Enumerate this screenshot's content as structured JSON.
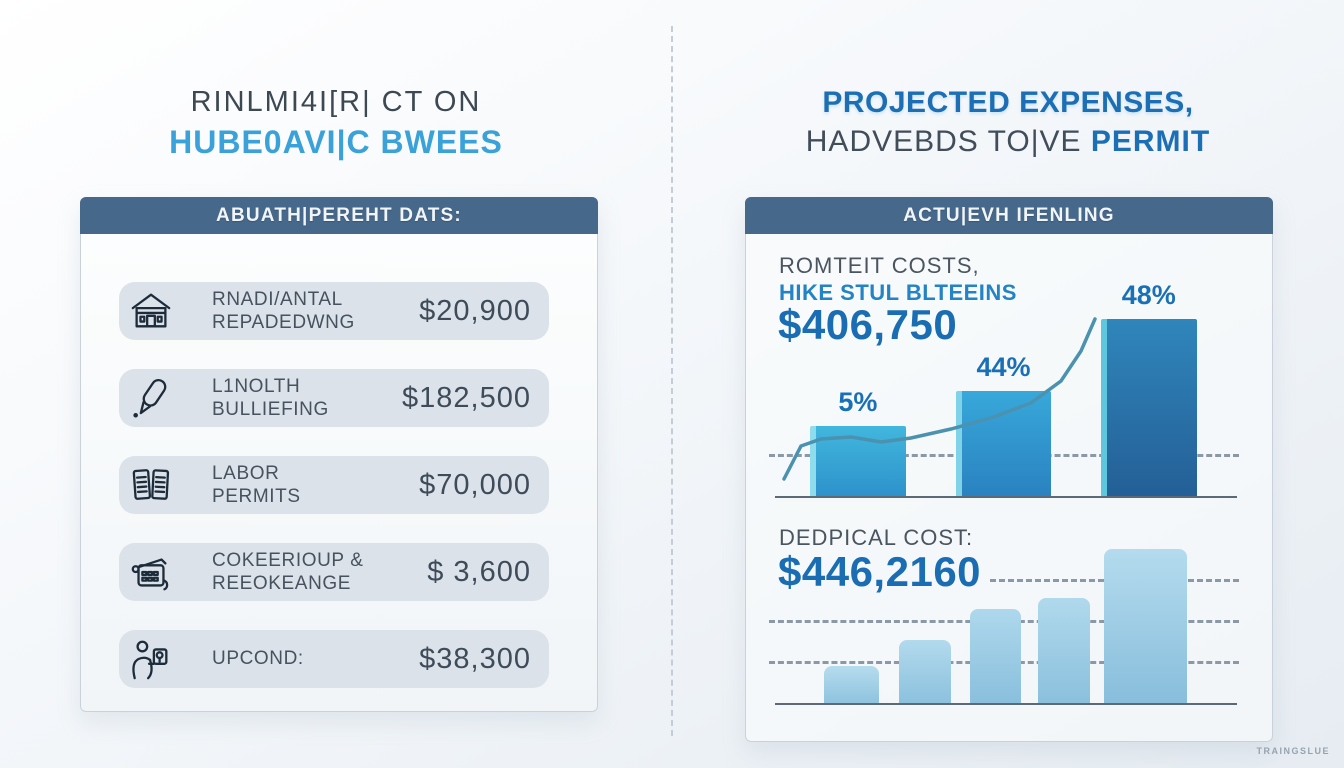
{
  "watermark": "TRAINGSLUE",
  "colors": {
    "header_bar": "#46688b",
    "accent_blue": "#1a6db2",
    "light_blue": "#3aa2d9",
    "dark_text": "#3c4852",
    "gray_text": "#4a5560",
    "row_bg": "#dce2e9"
  },
  "left_panel": {
    "title_line1": "RINLMI4I[R| CT ON",
    "title_line2": "HUBE0AVI|C BWEES",
    "header": "ABUATH|PEREHT DATS:",
    "rows": [
      {
        "icon": "house-icon",
        "label_line1": "RNADI/ANTAL",
        "label_line2": "REPADEDWNG",
        "amount": "$20,900"
      },
      {
        "icon": "pencil-icon",
        "label_line1": "L1NOLTH",
        "label_line2": "BULLIEFING",
        "amount": "$182,500"
      },
      {
        "icon": "documents-icon",
        "label_line1": "LABOR",
        "label_line2": "PERMITS",
        "amount": "$70,000"
      },
      {
        "icon": "calculator-icon",
        "label_line1": "COKEERIOUP &",
        "label_line2": "REEOKEANGE",
        "amount": "$ 3,600"
      },
      {
        "icon": "person-icon",
        "label_line1": "UPCOND:",
        "label_line2": "",
        "amount": "$38,300"
      }
    ]
  },
  "right_panel": {
    "title_line1": "PROJECTED EXPENSES,",
    "title_line2_plain": "HADVEBDS TO|VE ",
    "title_line2_bold": "PERMIT",
    "header": "ACTU|EVH IFENLING",
    "upper_caption_line1": "ROMTEIT COSTS,",
    "upper_caption_line2": "HIKE STUL BLTEEINS",
    "upper_amount": "$406,750",
    "lower_caption": "DEDPICAL COST:",
    "lower_amount": "$446,2160"
  },
  "chart_data": [
    {
      "type": "bar",
      "id": "upper",
      "title": "ACTU|EVH IFENLING — growth bars with trend line",
      "categories": [
        "stage-1",
        "stage-2",
        "stage-3"
      ],
      "values": [
        5,
        44,
        48
      ],
      "data_labels": [
        "5%",
        "44%",
        "48%"
      ],
      "ylim": [
        0,
        50
      ],
      "legend": "none",
      "grid": "one dashed horizontal line",
      "overlay": "rising trend line, steep at right",
      "bar_radius": "2px 2px 0 0",
      "bars": [
        {
          "left_pct": 8.7,
          "width_pct": 20.4,
          "height_pct": 32.3,
          "label": "5%",
          "color_top": "#41b7de",
          "color_bottom": "#2e92cb",
          "edge": "#8fdcec"
        },
        {
          "left_pct": 39.8,
          "width_pct": 20.2,
          "height_pct": 48.4,
          "label": "44%",
          "color_top": "#38a8da",
          "color_bottom": "#2a82c0",
          "edge": "#7fd2e8"
        },
        {
          "left_pct": 70.6,
          "width_pct": 20.4,
          "height_pct": 81.6,
          "label": "48%",
          "color_top": "#2f86bb",
          "color_bottom": "#245f97",
          "edge": "#5ec6dd"
        }
      ],
      "gridlines": [
        {
          "bottom_pct": 18.9,
          "left_pct": 0
        }
      ],
      "line_points": "15,198 32,165 52,158 82,156 112,161 142,157 182,148 222,137 262,122 292,100 312,70 326,38"
    },
    {
      "type": "bar",
      "id": "lower",
      "title": "DEDPICAL COST — ascending bars",
      "categories": [
        "w1",
        "w2",
        "w3",
        "w4",
        "w5"
      ],
      "values": [
        23,
        38,
        57,
        64,
        94
      ],
      "data_labels": [],
      "ylim": [
        0,
        100
      ],
      "legend": "none",
      "grid": "three dashed horizontal lines",
      "bar_radius": "8px 8px 0 0",
      "bars": [
        {
          "left_pct": 11.7,
          "width_pct": 11.7,
          "height_pct": 22.6,
          "color_top": "#b6dcee",
          "color_bottom": "#8fc3df"
        },
        {
          "left_pct": 27.7,
          "width_pct": 11.1,
          "height_pct": 38.4,
          "color_top": "#b2daed",
          "color_bottom": "#8cc1de"
        },
        {
          "left_pct": 42.8,
          "width_pct": 10.9,
          "height_pct": 57.3,
          "color_top": "#aed8ec",
          "color_bottom": "#8abfdd"
        },
        {
          "left_pct": 57.2,
          "width_pct": 11.1,
          "height_pct": 64.0,
          "color_top": "#b0d9ec",
          "color_bottom": "#8bc0dd"
        },
        {
          "left_pct": 71.3,
          "width_pct": 17.7,
          "height_pct": 94.0,
          "color_top": "#b4dbee",
          "color_bottom": "#88bedc"
        }
      ],
      "gridlines": [
        {
          "bottom_pct": 25,
          "left_pct": 0
        },
        {
          "bottom_pct": 50,
          "left_pct": 0
        },
        {
          "bottom_pct": 75,
          "left_pct": 47
        }
      ]
    }
  ]
}
